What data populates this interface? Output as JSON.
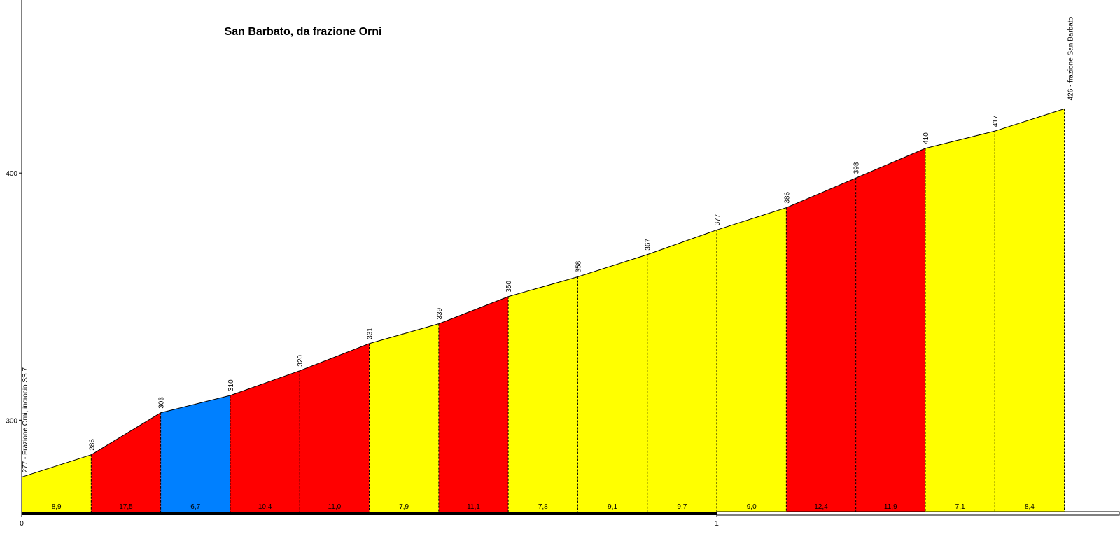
{
  "chart_data": {
    "type": "profile",
    "title": "San Barbato, da frazione Orni",
    "x": [
      0,
      0.1,
      0.2,
      0.3,
      0.4,
      0.5,
      0.6,
      0.7,
      0.8,
      0.9,
      1.0,
      1.1,
      1.2,
      1.3,
      1.4,
      1.5
    ],
    "values": [
      277,
      286,
      303,
      310,
      320,
      331,
      339,
      350,
      358,
      367,
      377,
      386,
      398,
      410,
      417,
      426
    ],
    "start_label": "277 - Frazione Orni, incrocio SS 7",
    "end_label": "426 - frazione San Barbato",
    "segments": {
      "values": [
        8.9,
        17.5,
        6.7,
        10.4,
        11.0,
        7.9,
        11.1,
        7.8,
        9.1,
        9.7,
        9.0,
        12.4,
        11.9,
        7.1,
        8.4
      ],
      "value_labels": [
        "8,9",
        "17,5",
        "6,7",
        "10,4",
        "11,0",
        "7,9",
        "11,1",
        "7,8",
        "9,1",
        "9,7",
        "9,0",
        "12,4",
        "11,9",
        "7,1",
        "8,4"
      ],
      "colors": [
        "#ffff00",
        "#ff0000",
        "#0080ff",
        "#ff0000",
        "#ff0000",
        "#ffff00",
        "#ff0000",
        "#ffff00",
        "#ffff00",
        "#ffff00",
        "#ffff00",
        "#ff0000",
        "#ff0000",
        "#ffff00",
        "#ffff00"
      ]
    },
    "xlim": [
      0,
      1.58
    ],
    "xticks": [
      0,
      1
    ],
    "ylim": [
      263,
      470
    ],
    "yticks": [
      300,
      400
    ]
  }
}
